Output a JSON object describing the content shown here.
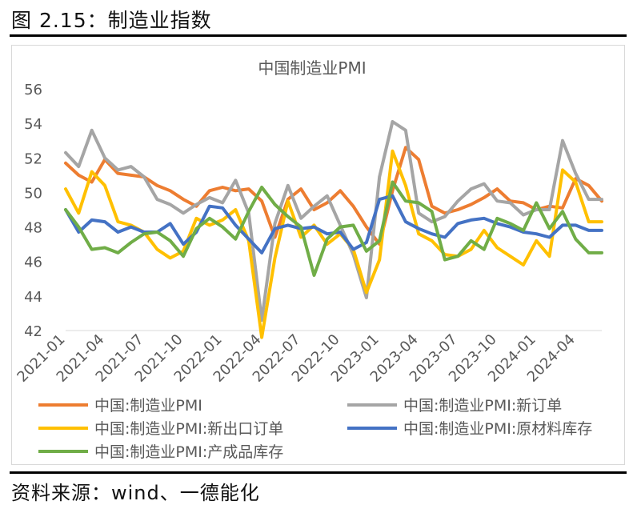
{
  "figure": {
    "title": "图 2.15：制造业指数",
    "source": "资料来源：wind、一德能化"
  },
  "chart_data": {
    "type": "line",
    "title": "中国制造业PMI",
    "xlabel": "",
    "ylabel": "",
    "ylim": [
      42,
      56
    ],
    "yticks": [
      "42",
      "44",
      "46",
      "48",
      "50",
      "52",
      "54",
      "56"
    ],
    "grid": false,
    "legend_position": "bottom",
    "x": [
      "2021-01",
      "2021-02",
      "2021-03",
      "2021-04",
      "2021-05",
      "2021-06",
      "2021-07",
      "2021-08",
      "2021-09",
      "2021-10",
      "2021-11",
      "2021-12",
      "2022-01",
      "2022-02",
      "2022-03",
      "2022-04",
      "2022-05",
      "2022-06",
      "2022-07",
      "2022-08",
      "2022-09",
      "2022-10",
      "2022-11",
      "2022-12",
      "2023-01",
      "2023-02",
      "2023-03",
      "2023-04",
      "2023-05",
      "2023-06",
      "2023-07",
      "2023-08",
      "2023-09",
      "2023-10",
      "2023-11",
      "2023-12",
      "2024-01",
      "2024-02",
      "2024-03",
      "2024-04",
      "2024-05",
      "2024-06"
    ],
    "xtick_labels": [
      "2021-01",
      "2021-04",
      "2021-07",
      "2021-10",
      "2022-01",
      "2022-04",
      "2022-07",
      "2022-10",
      "2023-01",
      "2023-04",
      "2023-07",
      "2023-10",
      "2024-01",
      "2024-04"
    ],
    "series": [
      {
        "name": "中国:制造业PMI",
        "color": "#ed7d31",
        "values": [
          51.7,
          51.0,
          50.6,
          51.9,
          51.1,
          51.0,
          50.9,
          50.4,
          50.1,
          49.6,
          49.2,
          50.1,
          50.3,
          50.1,
          50.2,
          49.5,
          47.4,
          49.6,
          50.2,
          49.0,
          49.4,
          50.1,
          49.2,
          48.0,
          47.0,
          50.1,
          52.6,
          51.9,
          49.2,
          48.8,
          49.0,
          49.3,
          49.7,
          50.2,
          49.5,
          49.4,
          49.0,
          49.2,
          49.1,
          50.8,
          50.4,
          49.5
        ]
      },
      {
        "name": "中国:制造业PMI:新订单",
        "color": "#a5a5a5",
        "values": [
          52.3,
          51.5,
          53.6,
          52.0,
          51.3,
          51.5,
          50.9,
          49.6,
          49.3,
          48.8,
          49.3,
          49.7,
          49.4,
          50.7,
          48.8,
          42.6,
          48.2,
          50.4,
          48.5,
          49.2,
          49.8,
          48.1,
          46.4,
          43.9,
          50.9,
          54.1,
          53.6,
          48.8,
          48.3,
          48.6,
          49.5,
          50.2,
          50.5,
          49.5,
          49.4,
          48.7,
          49.0,
          49.0,
          53.0,
          51.1,
          49.6,
          49.6
        ]
      },
      {
        "name": "中国:制造业PMI:新出口订单",
        "color": "#ffc000",
        "values": [
          50.2,
          48.8,
          51.2,
          50.4,
          48.3,
          48.1,
          47.7,
          46.7,
          46.2,
          46.6,
          48.5,
          48.1,
          48.4,
          49.0,
          47.2,
          41.6,
          46.2,
          49.5,
          47.4,
          48.1,
          47.0,
          47.6,
          46.7,
          44.2,
          46.1,
          52.4,
          50.4,
          47.6,
          47.2,
          46.4,
          46.3,
          46.7,
          47.8,
          46.8,
          46.3,
          45.8,
          47.2,
          46.3,
          51.3,
          50.6,
          48.3,
          48.3
        ]
      },
      {
        "name": "中国:制造业PMI:原材料库存",
        "color": "#4472c4",
        "values": [
          49.0,
          47.7,
          48.4,
          48.3,
          47.7,
          48.0,
          47.7,
          47.7,
          48.2,
          47.0,
          47.7,
          49.2,
          49.1,
          48.1,
          47.3,
          46.5,
          47.9,
          48.1,
          47.9,
          48.0,
          47.6,
          47.7,
          46.7,
          47.1,
          49.6,
          49.8,
          48.3,
          47.9,
          47.6,
          47.4,
          48.2,
          48.4,
          48.5,
          48.2,
          48.0,
          47.7,
          47.6,
          47.4,
          48.1,
          48.1,
          47.8,
          47.8
        ]
      },
      {
        "name": "中国:制造业PMI:产成品库存",
        "color": "#70ad47",
        "values": [
          49.0,
          48.0,
          46.7,
          46.8,
          46.5,
          47.1,
          47.6,
          47.7,
          47.2,
          46.3,
          47.9,
          48.5,
          48.0,
          47.3,
          48.9,
          50.3,
          49.3,
          48.6,
          48.0,
          45.2,
          47.3,
          48.0,
          48.1,
          46.6,
          47.2,
          50.6,
          49.5,
          49.4,
          48.9,
          46.1,
          46.3,
          47.2,
          46.7,
          48.5,
          48.2,
          47.8,
          49.4,
          47.9,
          48.9,
          47.3,
          46.5,
          46.5
        ]
      }
    ]
  }
}
